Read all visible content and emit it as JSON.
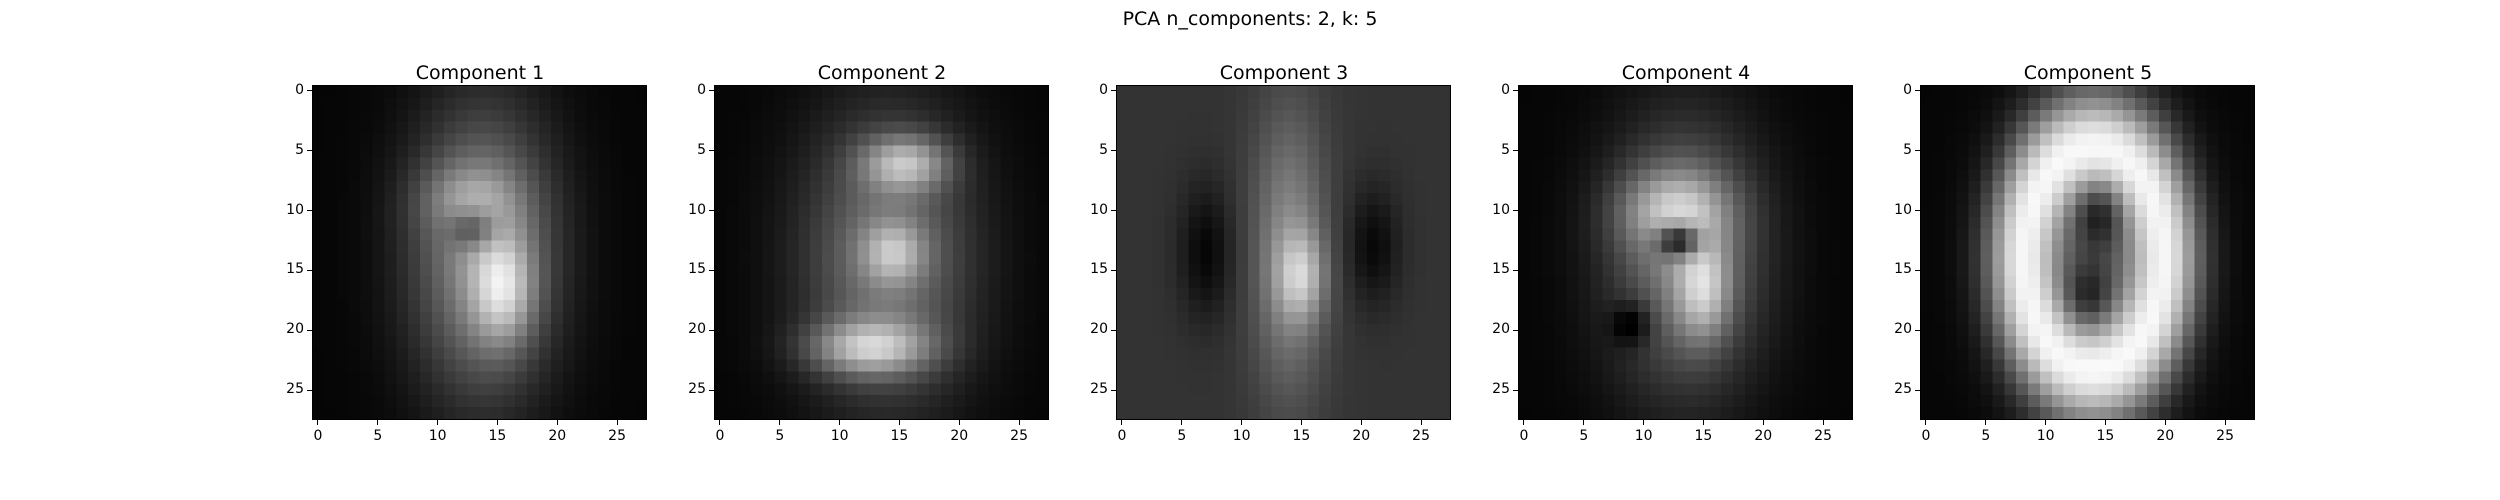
{
  "chart_data": [
    {
      "type": "heatmap",
      "title": "Component 1",
      "colormap": "gray",
      "shape": [
        28,
        28
      ],
      "xlim": [
        -0.5,
        27.5
      ],
      "ylim": [
        27.5,
        -0.5
      ],
      "xticks": [
        0,
        5,
        10,
        15,
        20,
        25
      ],
      "yticks": [
        0,
        5,
        10,
        15,
        20,
        25
      ],
      "background": 0.02,
      "blobs": [
        {
          "x": 13.8,
          "y": 13.5,
          "sx": 4.2,
          "sy": 8.5,
          "amp": 0.55
        },
        {
          "x": 12.5,
          "y": 9.0,
          "sx": 3.0,
          "sy": 2.2,
          "amp": 0.22
        },
        {
          "x": 15.5,
          "y": 16.5,
          "sx": 1.8,
          "sy": 3.2,
          "amp": 0.45
        },
        {
          "x": 13.0,
          "y": 11.5,
          "sx": 1.4,
          "sy": 1.2,
          "amp": -0.35
        }
      ]
    },
    {
      "type": "heatmap",
      "title": "Component 2",
      "colormap": "gray",
      "shape": [
        28,
        28
      ],
      "xlim": [
        -0.5,
        27.5
      ],
      "ylim": [
        27.5,
        -0.5
      ],
      "xticks": [
        0,
        5,
        10,
        15,
        20,
        25
      ],
      "yticks": [
        0,
        5,
        10,
        15,
        20,
        25
      ],
      "background": 0.02,
      "blobs": [
        {
          "x": 14.0,
          "y": 14.0,
          "sx": 5.0,
          "sy": 8.5,
          "amp": 0.45
        },
        {
          "x": 15.5,
          "y": 6.0,
          "sx": 2.5,
          "sy": 1.6,
          "amp": 0.5
        },
        {
          "x": 14.5,
          "y": 13.5,
          "sx": 1.8,
          "sy": 1.8,
          "amp": 0.35
        },
        {
          "x": 12.5,
          "y": 21.5,
          "sx": 3.5,
          "sy": 1.6,
          "amp": 0.55
        }
      ]
    },
    {
      "type": "heatmap",
      "title": "Component 3",
      "colormap": "gray",
      "shape": [
        28,
        28
      ],
      "xlim": [
        -0.5,
        27.5
      ],
      "ylim": [
        27.5,
        -0.5
      ],
      "xticks": [
        0,
        5,
        10,
        15,
        20,
        25
      ],
      "yticks": [
        0,
        5,
        10,
        15,
        20,
        25
      ],
      "background": 0.2,
      "blobs": [
        {
          "x": 14.0,
          "y": 13.5,
          "sx": 2.2,
          "sy": 8.5,
          "amp": 0.35
        },
        {
          "x": 15.0,
          "y": 15.5,
          "sx": 1.4,
          "sy": 2.5,
          "amp": 0.35
        },
        {
          "x": 7.0,
          "y": 13.5,
          "sx": 1.6,
          "sy": 4.0,
          "amp": -0.18
        },
        {
          "x": 21.0,
          "y": 13.0,
          "sx": 1.6,
          "sy": 3.5,
          "amp": -0.17
        }
      ]
    },
    {
      "type": "heatmap",
      "title": "Component 4",
      "colormap": "gray",
      "shape": [
        28,
        28
      ],
      "xlim": [
        -0.5,
        27.5
      ],
      "ylim": [
        27.5,
        -0.5
      ],
      "xticks": [
        0,
        5,
        10,
        15,
        20,
        25
      ],
      "yticks": [
        0,
        5,
        10,
        15,
        20,
        25
      ],
      "background": 0.02,
      "blobs": [
        {
          "x": 13.5,
          "y": 14.0,
          "sx": 4.5,
          "sy": 8.0,
          "amp": 0.45
        },
        {
          "x": 12.5,
          "y": 10.0,
          "sx": 3.2,
          "sy": 2.5,
          "amp": 0.45
        },
        {
          "x": 15.0,
          "y": 16.5,
          "sx": 1.6,
          "sy": 3.0,
          "amp": 0.45
        },
        {
          "x": 13.0,
          "y": 12.5,
          "sx": 1.3,
          "sy": 1.0,
          "amp": -0.7
        },
        {
          "x": 9.0,
          "y": 19.5,
          "sx": 1.2,
          "sy": 1.3,
          "amp": -0.25
        }
      ]
    },
    {
      "type": "heatmap",
      "title": "Component 5",
      "colormap": "gray",
      "shape": [
        28,
        28
      ],
      "xlim": [
        -0.5,
        27.5
      ],
      "ylim": [
        27.5,
        -0.5
      ],
      "xticks": [
        0,
        5,
        10,
        15,
        20,
        25
      ],
      "yticks": [
        0,
        5,
        10,
        15,
        20,
        25
      ],
      "background": 0.02,
      "ring": {
        "x": 14.0,
        "y": 14.0,
        "rx": 6.0,
        "ry": 9.5,
        "width": 1.4,
        "amp": 0.8
      },
      "blobs": [
        {
          "x": 14.0,
          "y": 14.0,
          "sx": 5.0,
          "sy": 8.5,
          "amp": 0.3
        },
        {
          "x": 14.5,
          "y": 10.0,
          "sx": 1.5,
          "sy": 2.0,
          "amp": -0.35
        },
        {
          "x": 13.5,
          "y": 17.5,
          "sx": 1.5,
          "sy": 2.0,
          "amp": -0.3
        }
      ]
    }
  ],
  "figure": {
    "suptitle": "PCA n_components: 2, k: 5"
  }
}
